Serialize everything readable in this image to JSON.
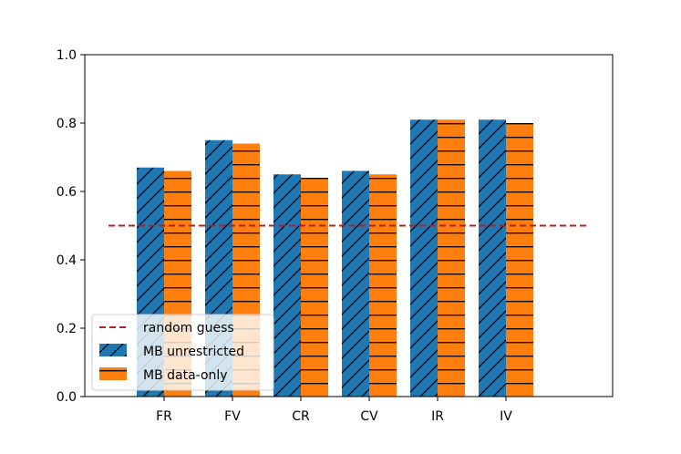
{
  "chart_data": {
    "type": "bar",
    "categories": [
      "FR",
      "FV",
      "CR",
      "CV",
      "IR",
      "IV"
    ],
    "series": [
      {
        "name": "MB unrestricted",
        "values": [
          0.67,
          0.75,
          0.65,
          0.66,
          0.81,
          0.81
        ],
        "color": "#1f77b4",
        "hatch": "diagonal"
      },
      {
        "name": "MB data-only",
        "values": [
          0.66,
          0.74,
          0.64,
          0.65,
          0.81,
          0.8
        ],
        "color": "#ff7f0e",
        "hatch": "horizontal"
      }
    ],
    "reference_line": {
      "name": "random guess",
      "value": 0.5,
      "color": "#b22222",
      "style": "dashed"
    },
    "title": "",
    "xlabel": "",
    "ylabel": "",
    "ylim": [
      0,
      1.0
    ],
    "yticks": [
      "0.0",
      "0.2",
      "0.4",
      "0.6",
      "0.8",
      "1.0"
    ],
    "grid": false,
    "legend_position": "lower-left"
  }
}
